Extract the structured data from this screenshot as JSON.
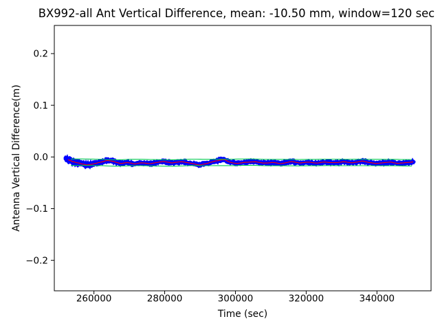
{
  "chart_data": {
    "type": "line",
    "title": "BX992-all Ant Vertical Difference, mean: -10.50 mm, window=120 sec",
    "xlabel": "Time (sec)",
    "ylabel": "Antenna Vertical Difference(m)",
    "xlim": [
      248800,
      355300
    ],
    "ylim": [
      -0.259,
      0.2545
    ],
    "grid": false,
    "legend": "none",
    "xticks": {
      "values": [
        260000,
        280000,
        300000,
        320000,
        340000
      ],
      "labels": [
        "260000",
        "280000",
        "300000",
        "320000",
        "340000"
      ]
    },
    "yticks": {
      "values": [
        0.2,
        0.1,
        0.0,
        -0.1,
        -0.2
      ],
      "labels": [
        "0.2",
        "0.1",
        "0.0",
        "−0.1",
        "−0.2"
      ]
    },
    "stats": {
      "mean_mm": -10.5,
      "window_sec": 120
    },
    "series": [
      {
        "name": "raw-vertical-difference",
        "type": "noisy-band",
        "color": "#0000ff",
        "points_t_center_halfwidth": [
          [
            251500,
            -0.003,
            0.007
          ],
          [
            252600,
            -0.005,
            0.008
          ],
          [
            254000,
            -0.0085,
            0.0075
          ],
          [
            255800,
            -0.012,
            0.0075
          ],
          [
            257800,
            -0.0155,
            0.0078
          ],
          [
            259600,
            -0.014,
            0.007
          ],
          [
            261500,
            -0.0105,
            0.0065
          ],
          [
            263800,
            -0.0065,
            0.007
          ],
          [
            265500,
            -0.008,
            0.0065
          ],
          [
            267500,
            -0.0125,
            0.006
          ],
          [
            269500,
            -0.011,
            0.006
          ],
          [
            271500,
            -0.0135,
            0.006
          ],
          [
            273500,
            -0.0115,
            0.0055
          ],
          [
            276000,
            -0.013,
            0.006
          ],
          [
            279600,
            -0.0085,
            0.006
          ],
          [
            282000,
            -0.0115,
            0.0055
          ],
          [
            284500,
            -0.0095,
            0.0055
          ],
          [
            287000,
            -0.0115,
            0.0055
          ],
          [
            289700,
            -0.0155,
            0.0055
          ],
          [
            292000,
            -0.0125,
            0.0055
          ],
          [
            294500,
            -0.008,
            0.0058
          ],
          [
            296800,
            -0.0048,
            0.006
          ],
          [
            298500,
            -0.01,
            0.0055
          ],
          [
            300500,
            -0.0125,
            0.0055
          ],
          [
            303000,
            -0.01,
            0.0055
          ],
          [
            305500,
            -0.009,
            0.0055
          ],
          [
            308000,
            -0.012,
            0.0055
          ],
          [
            310500,
            -0.0105,
            0.0055
          ],
          [
            313000,
            -0.013,
            0.0055
          ],
          [
            315800,
            -0.009,
            0.006
          ],
          [
            318200,
            -0.0115,
            0.0055
          ],
          [
            320500,
            -0.0105,
            0.0055
          ],
          [
            323000,
            -0.012,
            0.0055
          ],
          [
            325500,
            -0.01,
            0.0055
          ],
          [
            328000,
            -0.0115,
            0.0055
          ],
          [
            330500,
            -0.009,
            0.0058
          ],
          [
            333000,
            -0.0115,
            0.0055
          ],
          [
            335800,
            -0.0075,
            0.0065
          ],
          [
            337800,
            -0.011,
            0.006
          ],
          [
            339800,
            -0.013,
            0.0055
          ],
          [
            341800,
            -0.0115,
            0.0055
          ],
          [
            343800,
            -0.01,
            0.0055
          ],
          [
            345800,
            -0.0125,
            0.0055
          ],
          [
            347800,
            -0.011,
            0.0055
          ],
          [
            349500,
            -0.0105,
            0.0055
          ],
          [
            351000,
            -0.009,
            0.005
          ]
        ]
      },
      {
        "name": "moving-mean-120s",
        "type": "line",
        "color": "#ff0000",
        "derived": "band-center"
      },
      {
        "name": "upper-bound",
        "type": "line",
        "color": "#00c850",
        "derived": "smoothed-center-plus-offset",
        "offset": 0.0062
      },
      {
        "name": "lower-bound",
        "type": "line",
        "color": "#00c850",
        "derived": "smoothed-center-minus-offset",
        "offset": -0.0062
      }
    ]
  }
}
